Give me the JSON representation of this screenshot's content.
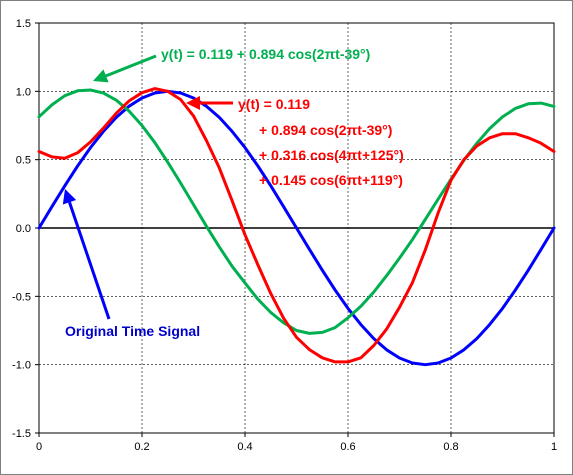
{
  "chart_data": {
    "type": "line",
    "xlim": [
      0,
      1
    ],
    "ylim": [
      -1.5,
      1.5
    ],
    "x_ticks": [
      "0",
      "0.2",
      "0.4",
      "0.6",
      "0.8",
      "1"
    ],
    "y_ticks": [
      "1.5",
      "1.0",
      "0.5",
      "0.0",
      "-0.5",
      "-1.0",
      "-1.5"
    ],
    "grid": true,
    "series": [
      {
        "color": "#0000ff",
        "x": [
          0,
          0.025,
          0.05,
          0.075,
          0.1,
          0.125,
          0.15,
          0.175,
          0.2,
          0.225,
          0.25,
          0.275,
          0.3,
          0.325,
          0.35,
          0.375,
          0.4,
          0.425,
          0.45,
          0.475,
          0.5,
          0.525,
          0.55,
          0.575,
          0.6,
          0.625,
          0.65,
          0.675,
          0.7,
          0.725,
          0.75,
          0.775,
          0.8,
          0.825,
          0.85,
          0.875,
          0.9,
          0.925,
          0.95,
          0.975,
          1
        ],
        "y": [
          0,
          0.156,
          0.309,
          0.454,
          0.588,
          0.707,
          0.809,
          0.891,
          0.951,
          0.988,
          1,
          0.988,
          0.951,
          0.891,
          0.809,
          0.707,
          0.588,
          0.454,
          0.309,
          0.156,
          0,
          -0.156,
          -0.309,
          -0.454,
          -0.588,
          -0.707,
          -0.809,
          -0.891,
          -0.951,
          -0.988,
          -1,
          -0.988,
          -0.951,
          -0.891,
          -0.809,
          -0.707,
          -0.588,
          -0.454,
          -0.309,
          -0.156,
          0
        ]
      },
      {
        "color": "#00b050",
        "x": [
          0,
          0.025,
          0.05,
          0.075,
          0.1,
          0.125,
          0.15,
          0.175,
          0.2,
          0.225,
          0.25,
          0.275,
          0.3,
          0.325,
          0.35,
          0.375,
          0.4,
          0.425,
          0.45,
          0.475,
          0.5,
          0.525,
          0.55,
          0.575,
          0.6,
          0.625,
          0.65,
          0.675,
          0.7,
          0.725,
          0.75,
          0.775,
          0.8,
          0.825,
          0.85,
          0.875,
          0.9,
          0.925,
          0.95,
          0.975,
          1
        ],
        "y": [
          0.814,
          0.901,
          0.968,
          1.004,
          1.01,
          0.987,
          0.935,
          0.855,
          0.75,
          0.624,
          0.481,
          0.329,
          0.171,
          0.013,
          -0.138,
          -0.28,
          -0.402,
          -0.521,
          -0.618,
          -0.694,
          -0.75,
          -0.771,
          -0.764,
          -0.729,
          -0.657,
          -0.572,
          -0.468,
          -0.349,
          -0.22,
          -0.085,
          0.063,
          0.211,
          0.357,
          0.495,
          0.62,
          0.727,
          0.813,
          0.875,
          0.909,
          0.914,
          0.89
        ]
      },
      {
        "color": "#ff0000",
        "x": [
          0,
          0.025,
          0.05,
          0.075,
          0.1,
          0.125,
          0.15,
          0.175,
          0.2,
          0.225,
          0.25,
          0.275,
          0.3,
          0.325,
          0.35,
          0.375,
          0.4,
          0.425,
          0.45,
          0.475,
          0.5,
          0.525,
          0.55,
          0.575,
          0.6,
          0.625,
          0.65,
          0.675,
          0.7,
          0.725,
          0.75,
          0.775,
          0.8,
          0.825,
          0.85,
          0.875,
          0.9,
          0.925,
          0.95,
          0.975,
          1
        ],
        "y": [
          0.56,
          0.52,
          0.51,
          0.55,
          0.63,
          0.73,
          0.84,
          0.93,
          0.99,
          1.02,
          1.0,
          0.94,
          0.82,
          0.64,
          0.44,
          0.2,
          -0.05,
          -0.27,
          -0.48,
          -0.66,
          -0.8,
          -0.89,
          -0.95,
          -0.98,
          -0.98,
          -0.95,
          -0.86,
          -0.74,
          -0.58,
          -0.4,
          -0.16,
          0.11,
          0.35,
          0.5,
          0.6,
          0.66,
          0.69,
          0.69,
          0.66,
          0.62,
          0.56
        ]
      }
    ],
    "annotations": {
      "green": "y(t) = 0.119 + 0.894 cos(2πt-39°)",
      "red_lines": [
        "y(t) = 0.119",
        "+ 0.894 cos(2πt-39°)",
        "+ 0.316 cos(4πt+125°)",
        "+ 0.145 cos(6πt+119°)"
      ],
      "blue": "Original Time Signal"
    },
    "colors": {
      "blue": "#0000ff",
      "green": "#00b050",
      "red": "#ff0000"
    }
  }
}
